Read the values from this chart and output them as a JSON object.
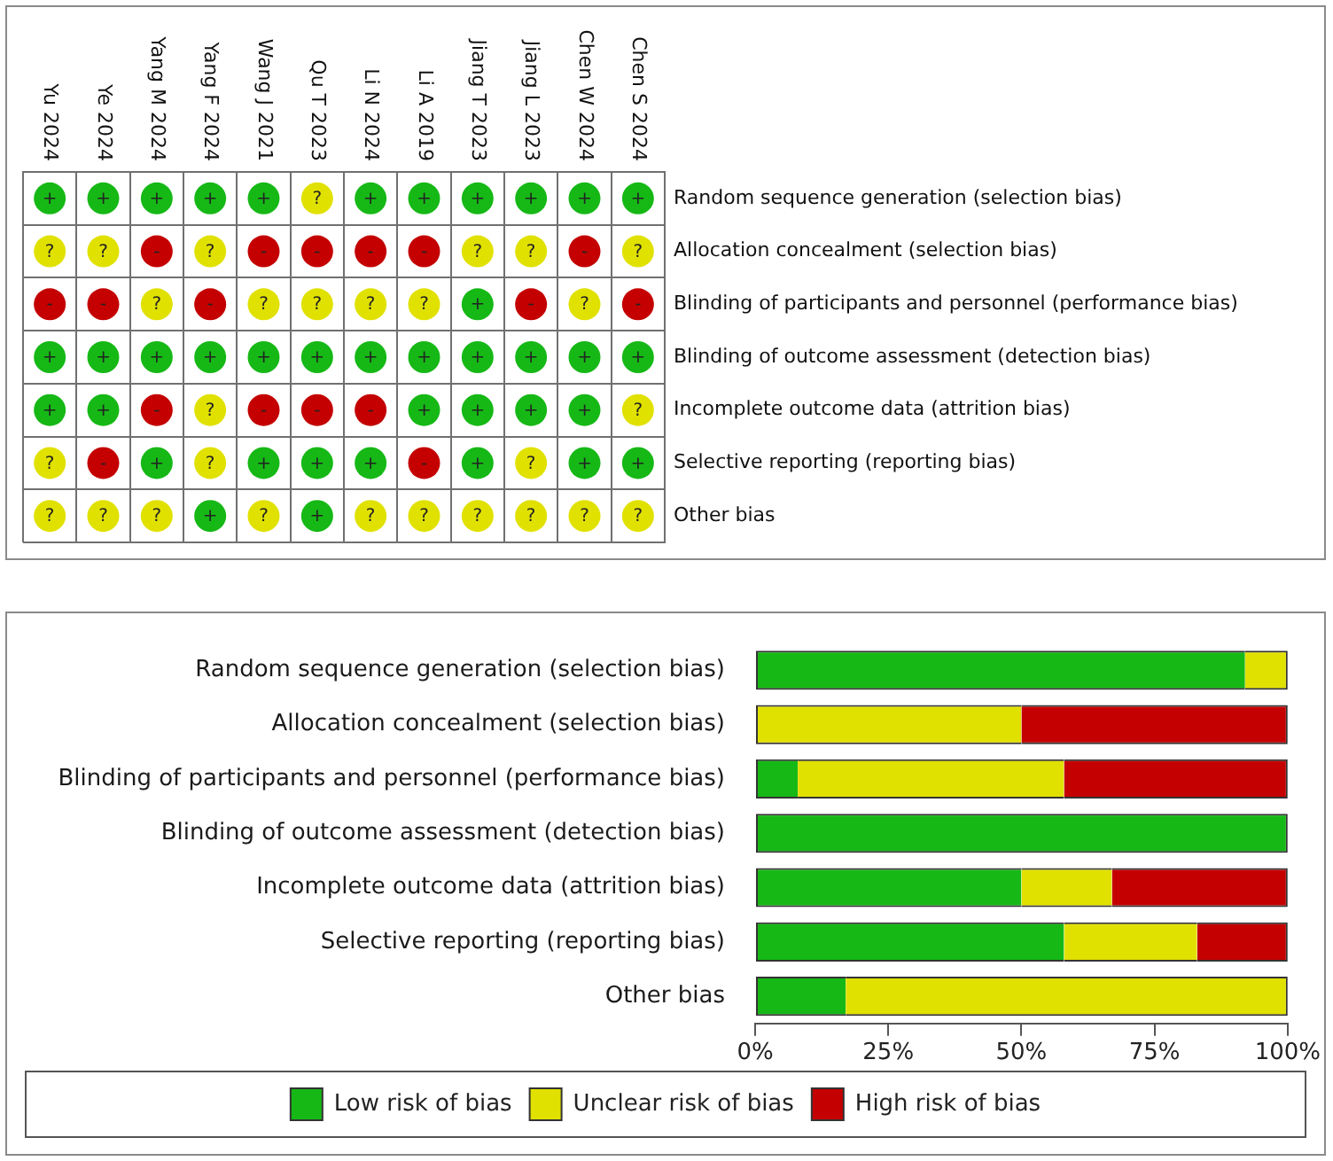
{
  "chart_data": [
    {
      "type": "heatmap",
      "categories": [
        "Yu 2024",
        "Ye 2024",
        "Yang M 2024",
        "Yang F 2024",
        "Wang J 2021",
        "Qu T 2023",
        "Li N 2024",
        "Li A 2019",
        "Jiang T 2023",
        "Jiang L 2023",
        "Chen W 2024",
        "Chen S 2024"
      ],
      "y_categories": [
        "Random sequence generation (selection bias)",
        "Allocation concealment (selection bias)",
        "Blinding of participants and personnel (performance bias)",
        "Blinding of outcome assessment (detection bias)",
        "Incomplete outcome data (attrition bias)",
        "Selective reporting (reporting bias)",
        "Other bias"
      ],
      "cells": [
        [
          "+",
          "+",
          "+",
          "+",
          "+",
          "?",
          "+",
          "+",
          "+",
          "+",
          "+",
          "+"
        ],
        [
          "?",
          "?",
          "-",
          "?",
          "-",
          "-",
          "-",
          "-",
          "?",
          "?",
          "-",
          "?"
        ],
        [
          "-",
          "-",
          "?",
          "-",
          "?",
          "?",
          "?",
          "?",
          "+",
          "-",
          "?",
          "-"
        ],
        [
          "+",
          "+",
          "+",
          "+",
          "+",
          "+",
          "+",
          "+",
          "+",
          "+",
          "+",
          "+"
        ],
        [
          "+",
          "+",
          "-",
          "?",
          "-",
          "-",
          "-",
          "+",
          "+",
          "+",
          "+",
          "?"
        ],
        [
          "?",
          "-",
          "+",
          "?",
          "+",
          "+",
          "+",
          "-",
          "+",
          "?",
          "+",
          "+"
        ],
        [
          "?",
          "?",
          "?",
          "+",
          "?",
          "+",
          "?",
          "?",
          "?",
          "?",
          "?",
          "?"
        ]
      ],
      "colors": [
        [
          "#16b816",
          "#16b816",
          "#16b816",
          "#16b816",
          "#16b816",
          "#e1e100",
          "#16b816",
          "#16b816",
          "#16b816",
          "#16b816",
          "#16b816",
          "#16b816"
        ],
        [
          "#e1e100",
          "#e1e100",
          "#c40000",
          "#e1e100",
          "#c40000",
          "#c40000",
          "#c40000",
          "#c40000",
          "#e1e100",
          "#e1e100",
          "#c40000",
          "#e1e100"
        ],
        [
          "#c40000",
          "#c40000",
          "#e1e100",
          "#c40000",
          "#e1e100",
          "#e1e100",
          "#e1e100",
          "#e1e100",
          "#16b816",
          "#c40000",
          "#e1e100",
          "#c40000"
        ],
        [
          "#16b816",
          "#16b816",
          "#16b816",
          "#16b816",
          "#16b816",
          "#16b816",
          "#16b816",
          "#16b816",
          "#16b816",
          "#16b816",
          "#16b816",
          "#16b816"
        ],
        [
          "#16b816",
          "#16b816",
          "#c40000",
          "#e1e100",
          "#c40000",
          "#c40000",
          "#c40000",
          "#16b816",
          "#16b816",
          "#16b816",
          "#16b816",
          "#e1e100"
        ],
        [
          "#e1e100",
          "#c40000",
          "#16b816",
          "#e1e100",
          "#16b816",
          "#16b816",
          "#16b816",
          "#c40000",
          "#16b816",
          "#e1e100",
          "#16b816",
          "#16b816"
        ],
        [
          "#e1e100",
          "#e1e100",
          "#e1e100",
          "#16b816",
          "#e1e100",
          "#16b816",
          "#e1e100",
          "#e1e100",
          "#e1e100",
          "#e1e100",
          "#e1e100",
          "#e1e100"
        ]
      ]
    },
    {
      "type": "bar",
      "orientation": "horizontal",
      "stacked": true,
      "categories": [
        "Random sequence generation (selection bias)",
        "Allocation concealment (selection bias)",
        "Blinding of participants and personnel (performance bias)",
        "Blinding of outcome assessment (detection bias)",
        "Incomplete outcome data (attrition bias)",
        "Selective reporting (reporting bias)",
        "Other bias"
      ],
      "series": [
        {
          "name": "Low risk of bias",
          "color": "#16b816",
          "values": [
            92,
            0,
            8,
            100,
            50,
            58,
            17
          ]
        },
        {
          "name": "Unclear risk of bias",
          "color": "#e1e100",
          "values": [
            8,
            50,
            50,
            0,
            17,
            25,
            83
          ]
        },
        {
          "name": "High risk of bias",
          "color": "#c40000",
          "values": [
            0,
            50,
            42,
            0,
            33,
            17,
            0
          ]
        }
      ],
      "xlim": [
        0,
        100
      ],
      "xticks": [
        {
          "value": 0,
          "label": "0%"
        },
        {
          "value": 25,
          "label": "25%"
        },
        {
          "value": 50,
          "label": "50%"
        },
        {
          "value": 75,
          "label": "75%"
        },
        {
          "value": 100,
          "label": "100%"
        }
      ],
      "legend": "bottom"
    }
  ]
}
